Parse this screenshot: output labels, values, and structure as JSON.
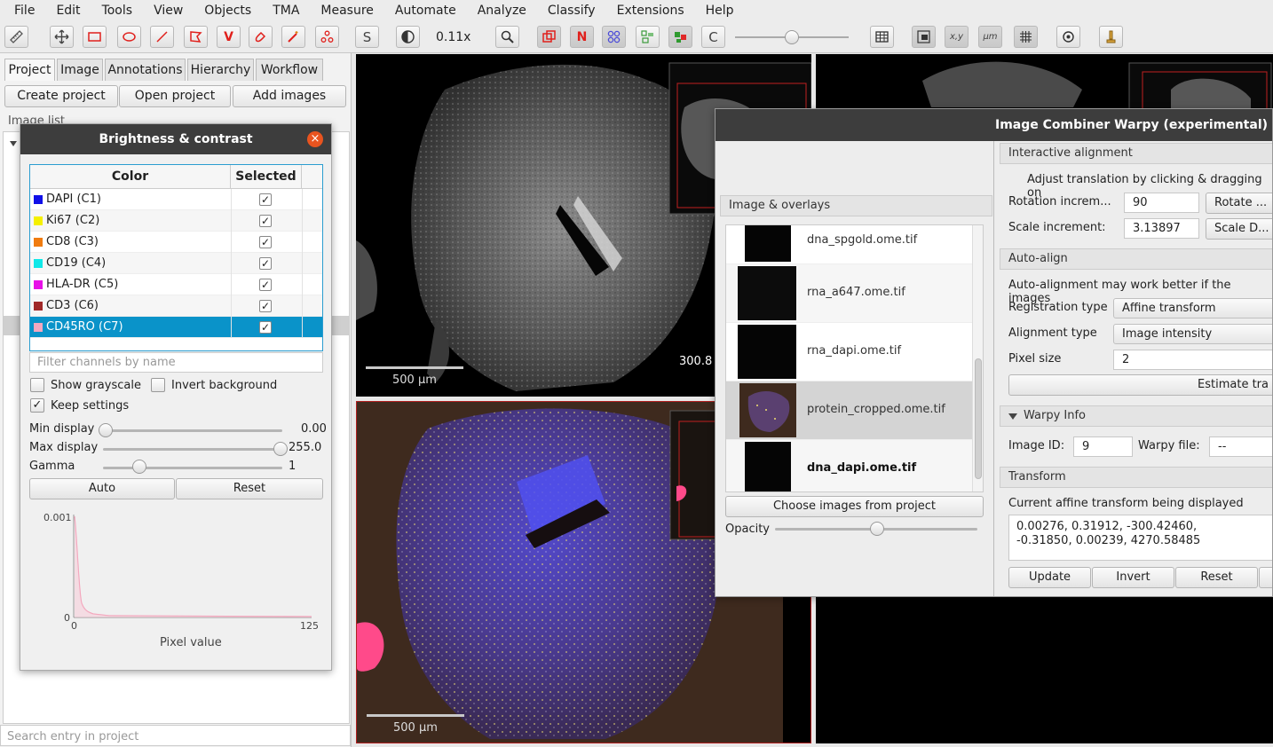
{
  "menubar": [
    "File",
    "Edit",
    "Tools",
    "View",
    "Objects",
    "TMA",
    "Measure",
    "Automate",
    "Analyze",
    "Classify",
    "Extensions",
    "Help"
  ],
  "toolbar": {
    "zoom": "0.11x",
    "s_label": "S",
    "n_label": "N",
    "c_label": "C",
    "v_label": "V",
    "xy_label": "x,y",
    "um_label": "μm"
  },
  "project_panel": {
    "tabs": [
      "Project",
      "Image",
      "Annotations",
      "Hierarchy",
      "Workflow"
    ],
    "buttons": [
      "Create project",
      "Open project",
      "Add images"
    ],
    "image_list_label": "Image list",
    "search_placeholder": "Search entry in project"
  },
  "brightness_contrast": {
    "title": "Brightness & contrast",
    "close": "×",
    "col_color": "Color",
    "col_selected": "Selected",
    "channels": [
      {
        "name": "DAPI (C1)",
        "color": "#1010e8",
        "checked": "✓"
      },
      {
        "name": "Ki67 (C2)",
        "color": "#f5f000",
        "checked": "✓"
      },
      {
        "name": "CD8 (C3)",
        "color": "#f07c10",
        "checked": "✓"
      },
      {
        "name": "CD19 (C4)",
        "color": "#10e8e8",
        "checked": "✓"
      },
      {
        "name": "HLA-DR (C5)",
        "color": "#e810e8",
        "checked": "✓"
      },
      {
        "name": "CD3 (C6)",
        "color": "#a02828",
        "checked": "✓"
      },
      {
        "name": "CD45RO (C7)",
        "color": "#f4a8c0",
        "checked": "✓"
      }
    ],
    "filter_placeholder": "Filter channels by name",
    "show_grayscale": "Show grayscale",
    "invert_background": "Invert background",
    "keep_settings": "Keep settings",
    "keep_check": "✓",
    "min_display_label": "Min display",
    "min_display_value": "0.00",
    "max_display_label": "Max display",
    "max_display_value": "255.0",
    "gamma_label": "Gamma",
    "gamma_value": "1",
    "auto": "Auto",
    "reset": "Reset",
    "histogram": {
      "y_top": "0.001",
      "y_bottom": "0",
      "x_left": "0",
      "x_right": "125",
      "xlabel": "Pixel value"
    }
  },
  "viewers": {
    "top_left_scale": "500 μm",
    "top_left_coord": "300.8",
    "bottom_left_scale": "500 μm"
  },
  "warpy": {
    "title": "Image Combiner Warpy (experimental)",
    "overlays_header": "Image & overlays",
    "images": [
      {
        "name": "dna_spgold.ome.tif"
      },
      {
        "name": "rna_a647.ome.tif"
      },
      {
        "name": "rna_dapi.ome.tif"
      },
      {
        "name": "protein_cropped.ome.tif"
      },
      {
        "name": "dna_dapi.ome.tif"
      }
    ],
    "choose_button": "Choose images from project",
    "opacity_label": "Opacity",
    "interactive_header": "Interactive alignment",
    "adjust_text": "Adjust translation by clicking & dragging on",
    "rotation_label": "Rotation increm...",
    "rotation_value": "90",
    "rotate_button": "Rotate ...",
    "scale_label": "Scale increment:",
    "scale_value": "3.13897",
    "scale_button": "Scale D...",
    "autoalign_header": "Auto-align",
    "autoalign_text": "Auto-alignment may work better if the images",
    "registration_label": "Registration type",
    "registration_value": "Affine transform",
    "alignment_label": "Alignment type",
    "alignment_value": "Image intensity",
    "pixel_label": "Pixel size",
    "pixel_value": "2",
    "estimate_button": "Estimate tra",
    "warpy_info_header": "Warpy Info",
    "image_id_label": "Image ID:",
    "image_id_value": "9",
    "warpy_file_label": "Warpy file:",
    "warpy_file_value": "--",
    "transform_header": "Transform",
    "transform_text": "Current affine transform being displayed",
    "transform_line1": "0.00276,   0.31912,  -300.42460,",
    "transform_line2": "-0.31850,  0.00239,  4270.58485",
    "update_button": "Update",
    "invert_button": "Invert",
    "reset_button": "Reset"
  }
}
